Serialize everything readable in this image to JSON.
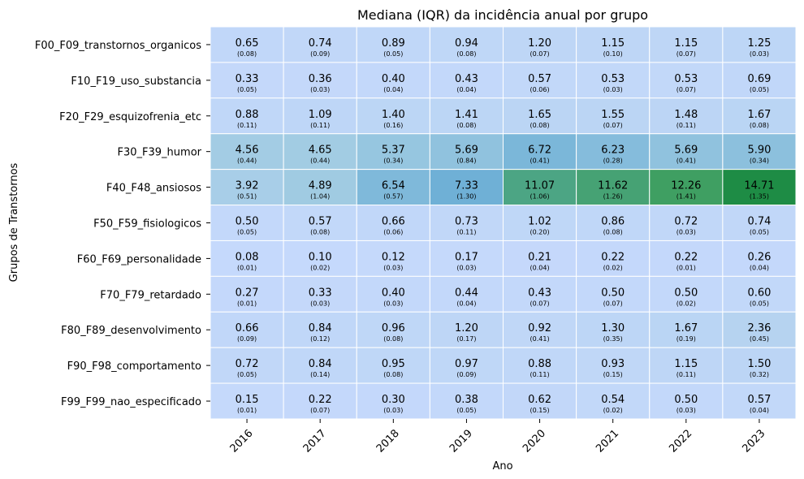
{
  "chart_data": {
    "type": "heatmap",
    "title": "Mediana (IQR) da incidência anual por grupo",
    "xlabel": "Ano",
    "ylabel": "Grupos de Transtornos",
    "x": [
      "2016",
      "2017",
      "2018",
      "2019",
      "2020",
      "2021",
      "2022",
      "2023"
    ],
    "y": [
      "F00_F09_transtornos_organicos",
      "F10_F19_uso_substancia",
      "F20_F29_esquizofrenia_etc",
      "F30_F39_humor",
      "F40_F48_ansiosos",
      "F50_F59_fisiologicos",
      "F60_F69_personalidade",
      "F70_F79_retardado",
      "F80_F89_desenvolvimento",
      "F90_F98_comportamento",
      "F99_F99_nao_especificado"
    ],
    "values": [
      [
        0.65,
        0.74,
        0.89,
        0.94,
        1.2,
        1.15,
        1.15,
        1.25
      ],
      [
        0.33,
        0.36,
        0.4,
        0.43,
        0.57,
        0.53,
        0.53,
        0.69
      ],
      [
        0.88,
        1.09,
        1.4,
        1.41,
        1.65,
        1.55,
        1.48,
        1.67
      ],
      [
        4.56,
        4.65,
        5.37,
        5.69,
        6.72,
        6.23,
        5.69,
        5.9
      ],
      [
        3.92,
        4.89,
        6.54,
        7.33,
        11.07,
        11.62,
        12.26,
        14.71
      ],
      [
        0.5,
        0.57,
        0.66,
        0.73,
        1.02,
        0.86,
        0.72,
        0.74
      ],
      [
        0.08,
        0.1,
        0.12,
        0.17,
        0.21,
        0.22,
        0.22,
        0.26
      ],
      [
        0.27,
        0.33,
        0.4,
        0.44,
        0.43,
        0.5,
        0.5,
        0.6
      ],
      [
        0.66,
        0.84,
        0.96,
        1.2,
        0.92,
        1.3,
        1.67,
        2.36
      ],
      [
        0.72,
        0.84,
        0.95,
        0.97,
        0.88,
        0.93,
        1.15,
        1.5
      ],
      [
        0.15,
        0.22,
        0.3,
        0.38,
        0.62,
        0.54,
        0.5,
        0.57
      ]
    ],
    "iqr": [
      [
        "0.08",
        "0.09",
        "0.05",
        "0.08",
        "0.07",
        "0.10",
        "0.07",
        "0.03"
      ],
      [
        "0.05",
        "0.03",
        "0.04",
        "0.04",
        "0.06",
        "0.03",
        "0.07",
        "0.05"
      ],
      [
        "0.11",
        "0.11",
        "0.16",
        "0.08",
        "0.08",
        "0.07",
        "0.11",
        "0.08"
      ],
      [
        "0.44",
        "0.44",
        "0.34",
        "0.84",
        "0.41",
        "0.28",
        "0.41",
        "0.34"
      ],
      [
        "0.51",
        "1.04",
        "0.57",
        "1.30",
        "1.06",
        "1.26",
        "1.41",
        "1.35"
      ],
      [
        "0.05",
        "0.08",
        "0.06",
        "0.11",
        "0.20",
        "0.08",
        "0.03",
        "0.05"
      ],
      [
        "0.01",
        "0.02",
        "0.03",
        "0.03",
        "0.04",
        "0.02",
        "0.01",
        "0.04"
      ],
      [
        "0.01",
        "0.03",
        "0.03",
        "0.04",
        "0.07",
        "0.07",
        "0.02",
        "0.05"
      ],
      [
        "0.09",
        "0.12",
        "0.08",
        "0.17",
        "0.41",
        "0.35",
        "0.19",
        "0.45"
      ],
      [
        "0.05",
        "0.14",
        "0.08",
        "0.09",
        "0.11",
        "0.15",
        "0.11",
        "0.32"
      ],
      [
        "0.01",
        "0.07",
        "0.03",
        "0.05",
        "0.15",
        "0.02",
        "0.03",
        "0.04"
      ]
    ],
    "colorscale": [
      "#c6d9fc",
      "#b5d3f0",
      "#a0cbe2",
      "#6eb0d6",
      "#5aaba8",
      "#3f9f62",
      "#1e8c45"
    ],
    "value_range": [
      0,
      14.71
    ],
    "colorbar": false,
    "grid": false
  }
}
